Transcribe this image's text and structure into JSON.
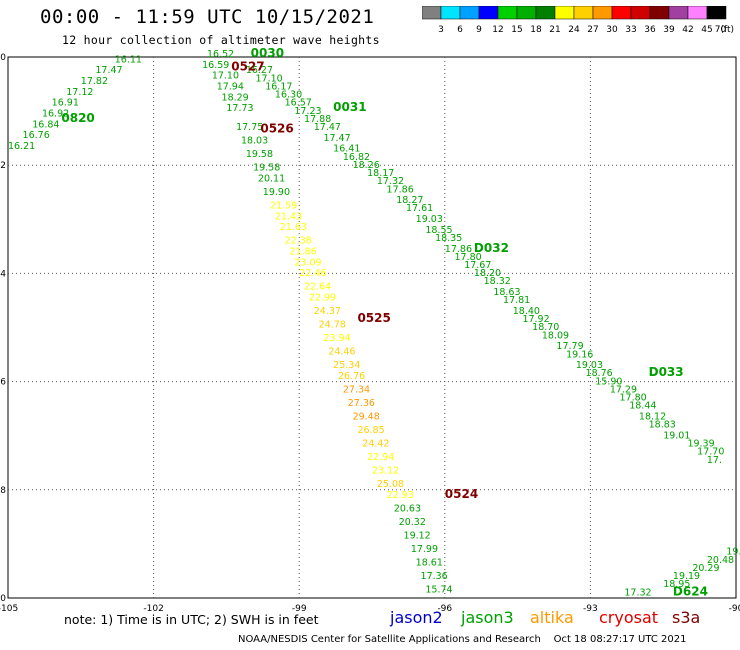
{
  "header": {
    "title": "00:00 - 11:59 UTC 10/15/2021",
    "subtitle": "12 hour collection of altimeter wave heights"
  },
  "legend": {
    "unit": "(ft)",
    "bins": [
      {
        "label": "3",
        "color": "#808080"
      },
      {
        "label": "6",
        "color": "#00e5ff"
      },
      {
        "label": "9",
        "color": "#00a0ff"
      },
      {
        "label": "12",
        "color": "#0000ff"
      },
      {
        "label": "15",
        "color": "#00d000"
      },
      {
        "label": "18",
        "color": "#00b000"
      },
      {
        "label": "21",
        "color": "#008000"
      },
      {
        "label": "24",
        "color": "#ffff00"
      },
      {
        "label": "27",
        "color": "#ffd000"
      },
      {
        "label": "30",
        "color": "#ff9900"
      },
      {
        "label": "33",
        "color": "#ff0000"
      },
      {
        "label": "36",
        "color": "#d00000"
      },
      {
        "label": "39",
        "color": "#800000"
      },
      {
        "label": "42",
        "color": "#a040a0"
      },
      {
        "label": "45",
        "color": "#ff80ff"
      },
      {
        "label": "70",
        "color": "#000000"
      }
    ]
  },
  "axes": {
    "lon_ticks": [
      "-105",
      "-102",
      "-99",
      "-96",
      "-93",
      "-90"
    ],
    "lat_ticks": [
      "-50",
      "-52",
      "-54",
      "-56",
      "-58",
      "-60"
    ]
  },
  "tracks": [
    {
      "satellite": "jason3",
      "color": "#00a000",
      "time_label": "0820",
      "time_lat": -51.2,
      "time_lon": -103.9,
      "points": [
        [
          "16.11",
          -50.1,
          -102.8
        ],
        [
          "17.47",
          -50.3,
          -103.2
        ],
        [
          "17.82",
          -50.5,
          -103.5
        ],
        [
          "17.12",
          -50.7,
          -103.8
        ],
        [
          "16.91",
          -50.9,
          -104.1
        ],
        [
          "16.92",
          -51.1,
          -104.3
        ],
        [
          "16.84",
          -51.3,
          -104.5
        ],
        [
          "16.76",
          -51.5,
          -104.7
        ],
        [
          "16.21",
          -51.7,
          -105.0
        ]
      ]
    },
    {
      "satellite": "jason3",
      "color": "#00a000",
      "time_label": "0030",
      "time_lat": -50.0,
      "time_lon": -100.0,
      "points": [
        [
          "16.52",
          -50.0,
          -100.9
        ],
        [
          "16.59",
          -50.2,
          -101.0
        ],
        [
          "17.10",
          -50.4,
          -100.8
        ],
        [
          "17.94",
          -50.6,
          -100.7
        ],
        [
          "18.29",
          -50.8,
          -100.6
        ],
        [
          "17.73",
          -51.0,
          -100.5
        ],
        [
          "17.75",
          -51.35,
          -100.3
        ],
        [
          "18.03",
          -51.6,
          -100.2
        ],
        [
          "19.58",
          -51.85,
          -100.1
        ],
        [
          "19.58",
          -52.1,
          -99.95
        ],
        [
          "20.11",
          -52.3,
          -99.85
        ],
        [
          "19.90",
          -52.55,
          -99.75
        ]
      ]
    },
    {
      "satellite": "jason3",
      "color": "#00a000",
      "time_label": "0031",
      "time_lat": -51.0,
      "time_lon": -98.3,
      "points": [
        [
          "16.27",
          -50.3,
          -100.1
        ],
        [
          "17.10",
          -50.45,
          -99.9
        ],
        [
          "16.17",
          -50.6,
          -99.7
        ],
        [
          "16.30",
          -50.75,
          -99.5
        ],
        [
          "16.57",
          -50.9,
          -99.3
        ],
        [
          "17.23",
          -51.05,
          -99.1
        ],
        [
          "17.88",
          -51.2,
          -98.9
        ],
        [
          "17.47",
          -51.35,
          -98.7
        ],
        [
          "17.47",
          -51.55,
          -98.5
        ],
        [
          "16.41",
          -51.75,
          -98.3
        ],
        [
          "16.82",
          -51.9,
          -98.1
        ],
        [
          "18.26",
          -52.05,
          -97.9
        ],
        [
          "18.17",
          -52.2,
          -97.6
        ],
        [
          "17.32",
          -52.35,
          -97.4
        ],
        [
          "17.86",
          -52.5,
          -97.2
        ],
        [
          "18.27",
          -52.7,
          -97.0
        ],
        [
          "17.61",
          -52.85,
          -96.8
        ],
        [
          "19.03",
          -53.05,
          -96.6
        ],
        [
          "18.55",
          -53.25,
          -96.4
        ],
        [
          "18.35",
          -53.4,
          -96.2
        ],
        [
          "17.86",
          -53.6,
          -96.0
        ]
      ]
    },
    {
      "satellite": "jason3",
      "color": "#00a000",
      "time_label": "D032",
      "time_lat": -53.6,
      "time_lon": -95.4,
      "points": [
        [
          "17.80",
          -53.75,
          -95.8
        ],
        [
          "17.67",
          -53.9,
          -95.6
        ],
        [
          "18.20",
          -54.05,
          -95.4
        ],
        [
          "18.32",
          -54.2,
          -95.2
        ],
        [
          "18.63",
          -54.4,
          -95.0
        ],
        [
          "17.81",
          -54.55,
          -94.8
        ],
        [
          "18.40",
          -54.75,
          -94.6
        ],
        [
          "17.92",
          -54.9,
          -94.4
        ],
        [
          "18.70",
          -55.05,
          -94.2
        ],
        [
          "18.09",
          -55.2,
          -94.0
        ],
        [
          "17.79",
          -55.4,
          -93.7
        ],
        [
          "19.16",
          -55.55,
          -93.5
        ],
        [
          "19.03",
          -55.75,
          -93.3
        ],
        [
          "18.76",
          -55.9,
          -93.1
        ],
        [
          "15.90",
          -56.05,
          -92.9
        ],
        [
          "17.29",
          -56.2,
          -92.6
        ]
      ]
    },
    {
      "satellite": "jason3",
      "color": "#00a000",
      "time_label": "D033",
      "time_lat": -55.9,
      "time_lon": -91.8,
      "points": [
        [
          "17.80",
          -56.35,
          -92.4
        ],
        [
          "18.44",
          -56.5,
          -92.2
        ],
        [
          "18.12",
          -56.7,
          -92.0
        ],
        [
          "18.83",
          -56.85,
          -91.8
        ],
        [
          "19.01",
          -57.05,
          -91.5
        ],
        [
          "19.39",
          -57.2,
          -91.0
        ],
        [
          "17.70",
          -57.35,
          -90.8
        ],
        [
          "17.",
          -57.5,
          -90.6
        ]
      ]
    },
    {
      "satellite": "cryosat",
      "color": "#800000",
      "time_label": "0527",
      "time_lat": -50.25,
      "time_lon": -100.4,
      "points": []
    },
    {
      "satellite": "cryosat",
      "color": "#800000",
      "time_label": "0526",
      "time_lat": -51.4,
      "time_lon": -99.8,
      "points": []
    },
    {
      "satellite": "cryosat",
      "color": "#800000",
      "time_label": "0525",
      "time_lat": -54.9,
      "time_lon": -97.8,
      "points": [
        [
          "21.59",
          -52.8,
          -99.6
        ],
        [
          "21.43",
          -53.0,
          -99.5
        ],
        [
          "21.63",
          -53.2,
          -99.4
        ],
        [
          "22.38",
          -53.45,
          -99.3
        ],
        [
          "21.86",
          -53.65,
          -99.2
        ],
        [
          "23.09",
          -53.85,
          -99.1
        ],
        [
          "22.46",
          -54.05,
          -99.0
        ],
        [
          "22.64",
          -54.3,
          -98.9
        ],
        [
          "22.99",
          -54.5,
          -98.8
        ],
        [
          "24.37",
          -54.75,
          -98.7
        ],
        [
          "24.78",
          -55.0,
          -98.6
        ],
        [
          "23.94",
          -55.25,
          -98.5
        ],
        [
          "24.46",
          -55.5,
          -98.4
        ],
        [
          "25.34",
          -55.75,
          -98.3
        ],
        [
          "26.76",
          -55.95,
          -98.2
        ],
        [
          "27.34",
          -56.2,
          -98.1
        ],
        [
          "27.36",
          -56.45,
          -98.0
        ],
        [
          "29.48",
          -56.7,
          -97.9
        ],
        [
          "26.85",
          -56.95,
          -97.8
        ],
        [
          "24.42",
          -57.2,
          -97.7
        ],
        [
          "22.94",
          -57.45,
          -97.6
        ],
        [
          "23.12",
          -57.7,
          -97.5
        ],
        [
          "25.08",
          -57.95,
          -97.4
        ]
      ]
    },
    {
      "satellite": "cryosat",
      "color": "#800000",
      "time_label": "0524",
      "time_lat": -58.15,
      "time_lon": -96.0,
      "points": [
        [
          "22.93",
          -58.15,
          -97.2
        ],
        [
          "20.63",
          -58.4,
          -97.05
        ],
        [
          "20.32",
          -58.65,
          -96.95
        ],
        [
          "19.12",
          -58.9,
          -96.85
        ],
        [
          "17.99",
          -59.15,
          -96.7
        ],
        [
          "18.61",
          -59.4,
          -96.6
        ],
        [
          "17.36",
          -59.65,
          -96.5
        ],
        [
          "15.74",
          -59.9,
          -96.4
        ],
        [
          "16.36",
          -60.15,
          -96.3
        ]
      ]
    },
    {
      "satellite": "jason3",
      "color": "#00a000",
      "time_label": "D624",
      "time_lat": -59.95,
      "time_lon": -91.3,
      "points": [
        [
          "17.32",
          -59.95,
          -92.3
        ],
        [
          "18.95",
          -59.8,
          -91.5
        ],
        [
          "19.19",
          -59.65,
          -91.3
        ],
        [
          "20.29",
          -59.5,
          -90.9
        ],
        [
          "20.48",
          -59.35,
          -90.6
        ],
        [
          "19.",
          -59.2,
          -90.2
        ]
      ]
    }
  ],
  "footer": {
    "note": "note:  1) Time is in UTC;  2) SWH is in feet",
    "satellites": [
      {
        "name": "jason2",
        "color": "#0000cc"
      },
      {
        "name": "jason3",
        "color": "#00a000"
      },
      {
        "name": "altika",
        "color": "#ff9900"
      },
      {
        "name": "cryosat",
        "color": "#dd0000"
      },
      {
        "name": "s3a",
        "color": "#800000"
      }
    ],
    "credit": "NOAA/NESDIS Center for Satellite Applications and Research",
    "timestamp": "Oct 18 08:27:17 UTC 2021"
  }
}
